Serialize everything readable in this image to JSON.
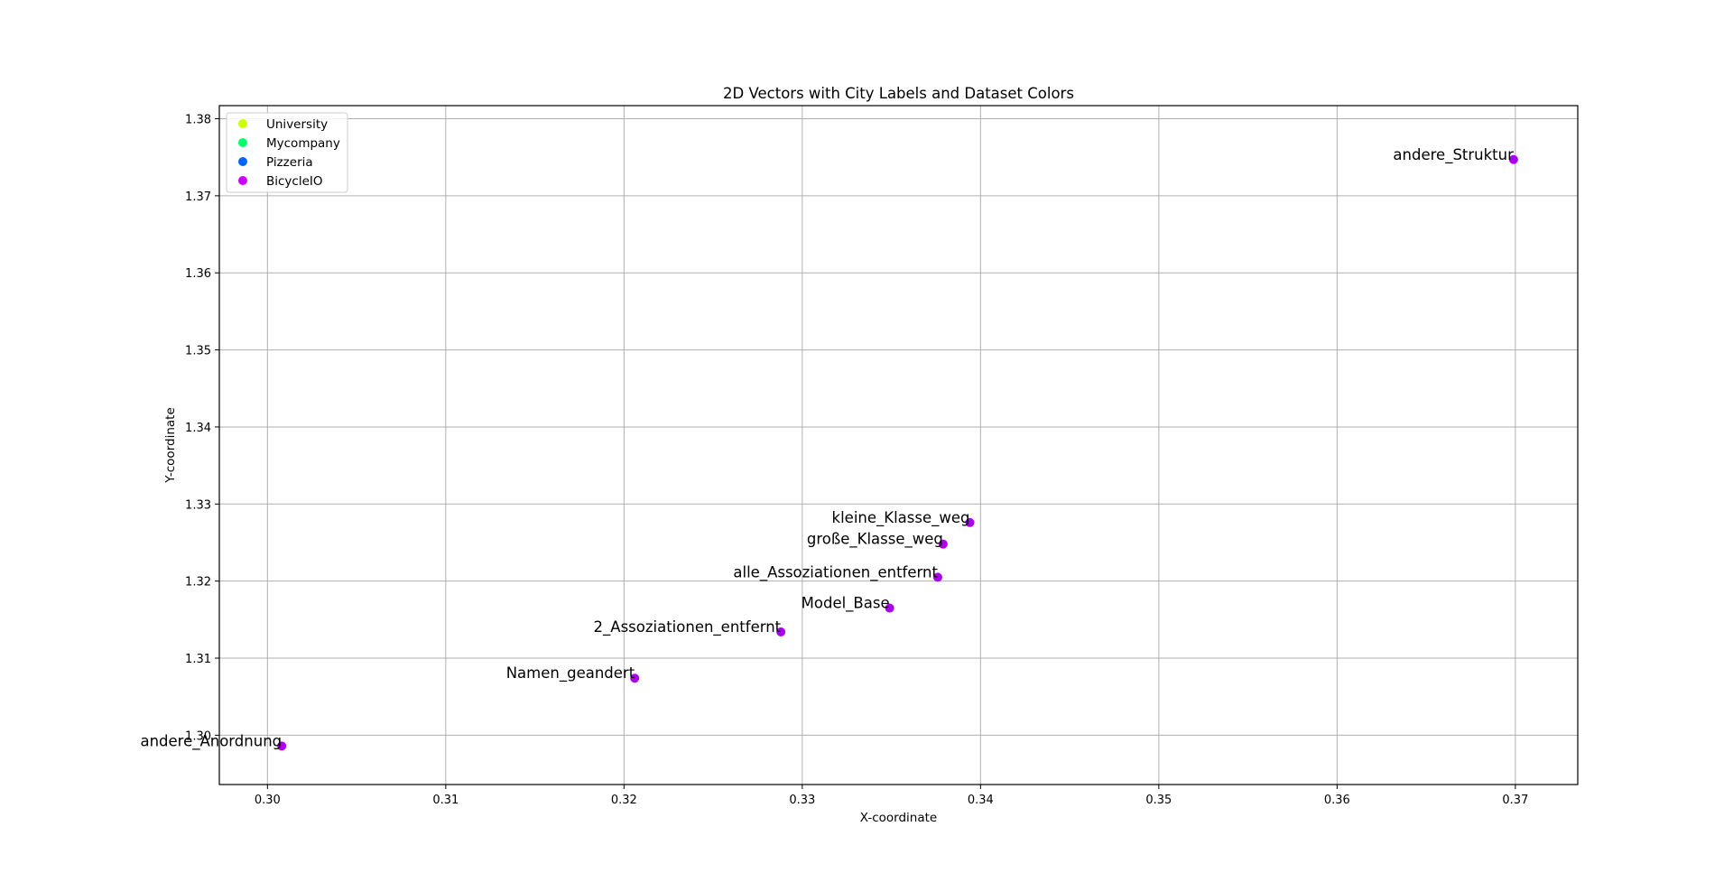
{
  "chart_data": {
    "type": "scatter",
    "title": "2D Vectors with City Labels and Dataset Colors",
    "xlabel": "X-coordinate",
    "ylabel": "Y-coordinate",
    "xlim": [
      0.2973,
      0.3735
    ],
    "ylim": [
      1.2936,
      1.3817
    ],
    "xticks": [
      0.3,
      0.31,
      0.32,
      0.33,
      0.34,
      0.35,
      0.36,
      0.37
    ],
    "xtick_labels": [
      "0.30",
      "0.31",
      "0.32",
      "0.33",
      "0.34",
      "0.35",
      "0.36",
      "0.37"
    ],
    "yticks": [
      1.3,
      1.31,
      1.32,
      1.33,
      1.34,
      1.35,
      1.36,
      1.37,
      1.38
    ],
    "ytick_labels": [
      "1.30",
      "1.31",
      "1.32",
      "1.33",
      "1.34",
      "1.35",
      "1.36",
      "1.37",
      "1.38"
    ],
    "grid": true,
    "legend_position": "top-left",
    "legend": [
      {
        "label": "University",
        "color": "#ccff00"
      },
      {
        "label": "Mycompany",
        "color": "#00ff66"
      },
      {
        "label": "Pizzeria",
        "color": "#0066ff"
      },
      {
        "label": "BicycleIO",
        "color": "#cc00ff"
      }
    ],
    "series": [
      {
        "name": "BicycleIO",
        "color": "#aa00ee",
        "points": [
          {
            "x": 0.3699,
            "y": 1.3747,
            "label": "andere_Struktur"
          },
          {
            "x": 0.3394,
            "y": 1.3276,
            "label": "kleine_Klasse_weg"
          },
          {
            "x": 0.3379,
            "y": 1.3248,
            "label": "große_Klasse_weg"
          },
          {
            "x": 0.3376,
            "y": 1.3205,
            "label": "alle_Assoziationen_entfernt"
          },
          {
            "x": 0.3349,
            "y": 1.3165,
            "label": "Model_Base"
          },
          {
            "x": 0.3288,
            "y": 1.3134,
            "label": "2_Assoziationen_entfernt"
          },
          {
            "x": 0.3206,
            "y": 1.3074,
            "label": "Namen_geandert"
          },
          {
            "x": 0.3008,
            "y": 1.2986,
            "label": "andere_Anordnung"
          }
        ]
      }
    ]
  }
}
